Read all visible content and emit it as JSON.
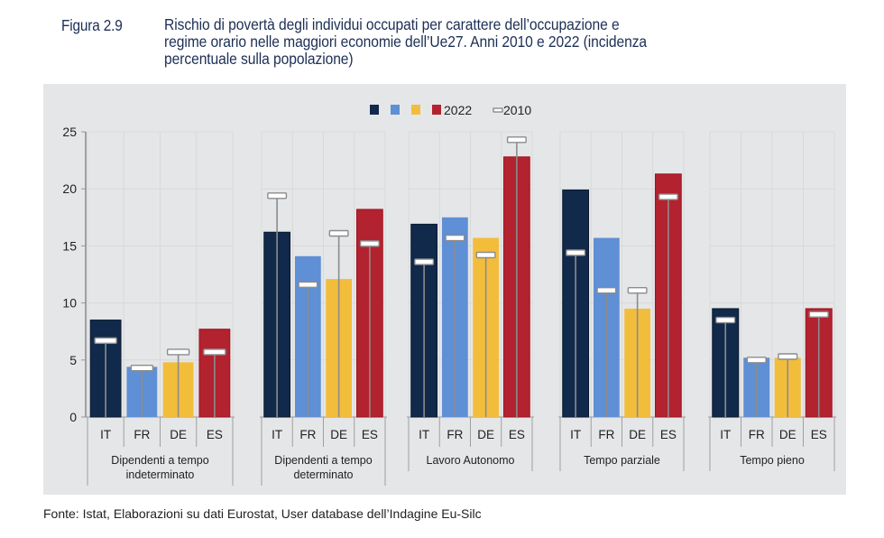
{
  "figure": {
    "label": "Figura 2.9",
    "title_line1": "Rischio di povertà degli individui occupati per carattere dell’occupazione e",
    "title_line2": "regime orario nelle maggiori economie dell’Ue27. Anni 2010 e 2022",
    "title_line2_suffix": "(incidenza",
    "title_line3": "percentuale sulla popolazione)"
  },
  "source": "Fonte: Istat, Elaborazioni su dati Eurostat, User database dell’Indagine Eu-Silc",
  "colors": {
    "IT": "#11294a",
    "FR": "#5f8fd4",
    "DE": "#f3bd3c",
    "ES": "#b2222f",
    "panel": "#e5e6e8",
    "grid": "#d8d9db",
    "marker_stroke": "#8c8c8c"
  },
  "chart_data": {
    "type": "bar",
    "title": "Rischio di povertà degli individui occupati per carattere dell’occupazione e regime orario nelle maggiori economie dell’Ue27. Anni 2010 e 2022 (incidenza percentuale sulla popolazione)",
    "xlabel": "",
    "ylabel": "",
    "ylim": [
      0,
      25
    ],
    "yticks": [
      "0",
      "5",
      "10",
      "15",
      "20",
      "25"
    ],
    "ytick_values": [
      0,
      5,
      10,
      15,
      20,
      25
    ],
    "grid": true,
    "legend": {
      "position": "top-center",
      "bar_label": "2022",
      "marker_label": "2010"
    },
    "countries": [
      "IT",
      "FR",
      "DE",
      "ES"
    ],
    "groups": [
      {
        "label": "Dipendenti a tempo indeterminato",
        "label_lines": [
          "Dipendenti a tempo",
          "indeterminato"
        ],
        "values_2022": [
          8.5,
          4.4,
          4.8,
          7.7
        ],
        "values_2010": [
          6.7,
          4.3,
          5.7,
          5.7
        ]
      },
      {
        "label": "Dipendenti a tempo determinato",
        "label_lines": [
          "Dipendenti a tempo",
          "determinato"
        ],
        "values_2022": [
          16.2,
          14.1,
          12.1,
          18.2
        ],
        "values_2010": [
          19.4,
          11.6,
          16.1,
          15.2
        ]
      },
      {
        "label": "Lavoro Autonomo",
        "label_lines": [
          "Lavoro Autonomo"
        ],
        "values_2022": [
          16.9,
          17.5,
          15.7,
          22.8
        ],
        "values_2010": [
          13.6,
          15.7,
          14.2,
          24.3
        ]
      },
      {
        "label": "Tempo parziale",
        "label_lines": [
          "Tempo parziale"
        ],
        "values_2022": [
          19.9,
          15.7,
          9.5,
          21.3
        ],
        "values_2010": [
          14.4,
          11.1,
          11.1,
          19.3
        ]
      },
      {
        "label": "Tempo pieno",
        "label_lines": [
          "Tempo pieno"
        ],
        "values_2022": [
          9.5,
          5.2,
          5.2,
          9.5
        ],
        "values_2010": [
          8.5,
          5.0,
          5.3,
          9.0
        ]
      }
    ]
  }
}
